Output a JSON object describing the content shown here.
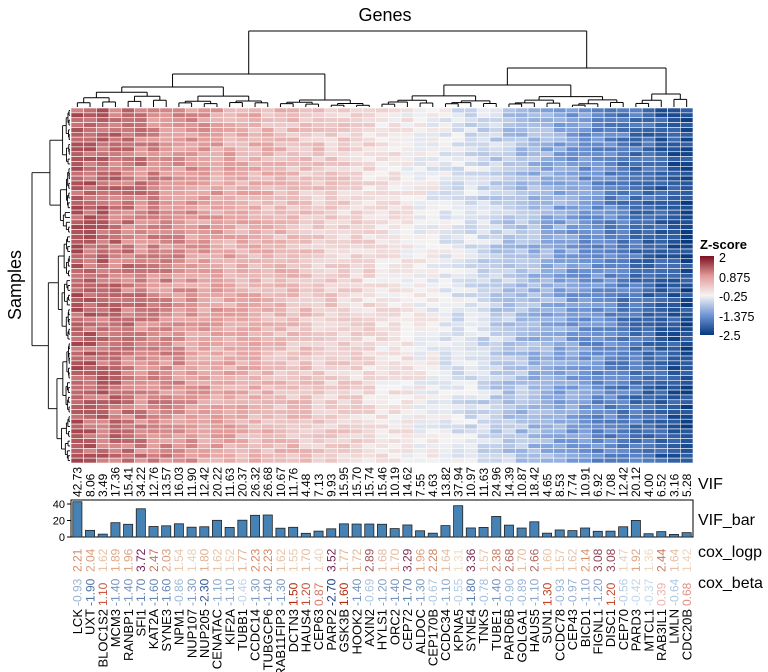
{
  "chart_data": {
    "type": "heatmap",
    "title": "Genes",
    "ylabel": "Samples",
    "legend": {
      "title": "Z-score",
      "ticks": [
        "2",
        "0.875",
        "-0.25",
        "-1.375",
        "-2.5"
      ],
      "range": [
        -2.5,
        2
      ],
      "colors": [
        "#7a1020",
        "#e29a98",
        "#f5f4f4",
        "#6f95d6",
        "#06397f"
      ],
      "placement": "right"
    },
    "genes": [
      "LCK",
      "UXT",
      "BLOC1S2",
      "MCM3",
      "RANBP1",
      "SFI1",
      "KAT2A",
      "SYNE3",
      "NPM1",
      "NUP107",
      "NUP205",
      "CENATAC",
      "KIF2A",
      "TUBB1",
      "CCDC14",
      "TUBGCP6",
      "RAB11FIP3",
      "DCTN3",
      "HAUS4",
      "CEP63",
      "PARP2",
      "GSK3B",
      "HOOK2",
      "AXIN2",
      "HYLS1",
      "ORC2",
      "CEP72",
      "ALDOC",
      "CEP170B",
      "CCDC34",
      "KPNA5",
      "SYNE4",
      "TNKS",
      "TUBE1",
      "PARD6B",
      "GOLGA1",
      "HAUS5",
      "SUN1",
      "CCDC78",
      "CEP43",
      "BICD1",
      "FIGNL1",
      "DISC1",
      "CEP70",
      "PARD3",
      "MTCL1",
      "RAB3IL1",
      "LMLN",
      "CDC20B"
    ],
    "annotations": {
      "vif_label": "VIF",
      "vif_bar_label": "VIF_bar",
      "cox_logp_label": "cox_logp",
      "cox_beta_label": "cox_beta",
      "vif_bar_ticks": [
        "0",
        "20",
        "40"
      ],
      "vif_bar_ylim": [
        0,
        45
      ],
      "vif_bar_color": "#4682b4",
      "VIF": [
        "42.73",
        "8.06",
        "3.49",
        "17.36",
        "15.41",
        "34.22",
        "12.76",
        "13.57",
        "16.03",
        "11.90",
        "12.42",
        "20.22",
        "11.63",
        "20.37",
        "26.32",
        "26.68",
        "10.67",
        "11.76",
        "4.48",
        "7.13",
        "9.93",
        "15.95",
        "15.70",
        "15.74",
        "15.46",
        "10.19",
        "14.62",
        "7.55",
        "4.63",
        "13.82",
        "37.94",
        "10.97",
        "11.63",
        "24.96",
        "14.39",
        "10.87",
        "18.42",
        "4.65",
        "8.53",
        "7.74",
        "10.91",
        "6.92",
        "7.08",
        "12.42",
        "20.12",
        "4.00",
        "6.52",
        "3.16",
        "5.28"
      ],
      "cox_logp": [
        "2.21",
        "2.04",
        "1.62",
        "1.89",
        "1.96",
        "3.72",
        "2.47",
        "2.03",
        "1.54",
        "1.48",
        "1.80",
        "1.62",
        "1.52",
        "1.77",
        "2.23",
        "2.23",
        "1.62",
        "1.55",
        "1.70",
        "1.40",
        "3.52",
        "1.77",
        "1.72",
        "2.89",
        "1.68",
        "1.70",
        "3.29",
        "1.96",
        "2.28",
        "1.64",
        "1.31",
        "3.36",
        "1.57",
        "2.38",
        "2.68",
        "1.70",
        "2.66",
        "1.60",
        "1.57",
        "1.62",
        "2.14",
        "3.08",
        "3.08",
        "1.47",
        "1.92",
        "1.36",
        "2.44",
        "1.64",
        "1.42"
      ],
      "cox_beta": [
        "-0.93",
        "-1.90",
        "1.10",
        "-1.40",
        "-1.40",
        "-1.70",
        "-1.60",
        "-1.60",
        "-0.86",
        "-1.30",
        "-2.30",
        "-1.10",
        "-1.10",
        "-0.46",
        "-1.30",
        "-1.40",
        "-1.30",
        "1.50",
        "1.20",
        "0.87",
        "-2.70",
        "1.60",
        "-1.40",
        "-0.69",
        "-1.20",
        "-1.40",
        "-1.70",
        "-1.30",
        "-0.67",
        "-1.10",
        "-0.55",
        "-1.80",
        "-0.78",
        "-1.40",
        "-0.90",
        "-0.89",
        "-1.10",
        "1.30",
        "-0.93",
        "-0.97",
        "-1.10",
        "-1.20",
        "1.20",
        "-0.56",
        "-0.42",
        "-0.37",
        "0.39",
        "-0.64",
        "0.68"
      ]
    }
  }
}
